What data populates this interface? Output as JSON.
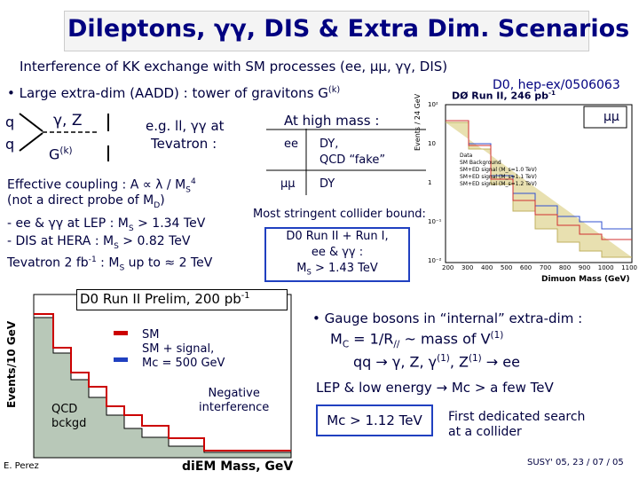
{
  "header": {
    "title": "Dileptons, γγ, DIS & Extra Dim. Scenarios",
    "subtitle": "Interference of KK exchange with SM processes (ee, μμ, γγ, DIS)",
    "reference": "D0, hep-ex/0506063"
  },
  "aadd": {
    "bullet": [
      "• Large extra-dim (AADD) : tower of gravitons G",
      "(k)"
    ],
    "diagram": {
      "q1": "q",
      "q2": "q",
      "boson": "γ, Z",
      "graviton": [
        "G",
        "(k)"
      ]
    },
    "example": [
      "e.g. ll, γγ at",
      "Tevatron :"
    ],
    "table": {
      "header": "At high mass :",
      "rows": [
        [
          "ee",
          "DY,",
          "QCD “fake”"
        ],
        [
          "μμ",
          "DY"
        ]
      ]
    },
    "coupling": [
      "Effective coupling : A ∝ λ / M",
      "S",
      "4"
    ],
    "probe": [
      "(not a direct probe of M",
      "D",
      ")"
    ],
    "limits": [
      [
        "- ee & γγ at LEP : M",
        "S",
        " > 1.34 TeV"
      ],
      [
        "- DIS at HERA : M",
        "S",
        " > 0.82 TeV"
      ],
      [
        "Tevatron 2 fb",
        "-1",
        " :  M",
        "S",
        " up to ≈ 2 TeV"
      ]
    ],
    "bound_label": "Most stringent collider bound:",
    "bound_box": [
      "D0 Run II + Run I,",
      "ee & γγ :",
      "M",
      "S",
      " > 1.43 TeV"
    ]
  },
  "plot_dimuon": {
    "title": [
      "DØ Run II, 246 pb",
      "-1"
    ],
    "channel": "μμ",
    "x_label": "Dimuon Mass (GeV)",
    "y_label": "Events / 24 GeV",
    "legend": [
      "Data",
      "SM Background",
      "SM+ED signal (M_s=1.0 TeV)",
      "SM+ED signal (M_s=1.1 TeV)",
      "SM+ED signal (M_s=1.2 TeV)"
    ],
    "xticks": [
      "200",
      "300",
      "400",
      "500",
      "600",
      "700",
      "800",
      "900",
      "1000",
      "1100"
    ],
    "yticks": [
      "10⁻²",
      "10⁻¹",
      "1",
      "10",
      "10²"
    ]
  },
  "plot_diem": {
    "title": [
      "D0 Run II Prelim, 200 pb",
      "-1"
    ],
    "legend": [
      "SM",
      "SM + signal,",
      "Mc = 500 GeV"
    ],
    "annotation": [
      "Negative",
      "interference"
    ],
    "qcd": [
      "QCD",
      "bckgd"
    ],
    "author": "E. Perez",
    "x_label": "diEM Mass, GeV",
    "y_label": "Events/10 GeV"
  },
  "kk": {
    "bullet": "• Gauge bosons in “internal” extra-dim :",
    "mass": [
      "M",
      "C",
      " = 1/R",
      "//",
      " ~ mass of V",
      "(1)"
    ],
    "process": [
      "qq → γ, Z, γ",
      "(1)",
      ", Z",
      "(1)",
      " → ee"
    ],
    "lep": "LEP & low energy → Mc > a few TeV",
    "box": "Mc > 1.12 TeV",
    "note": [
      "First dedicated search",
      "at a collider"
    ]
  },
  "footer": "SUSY' 05, 23 / 07 / 05"
}
